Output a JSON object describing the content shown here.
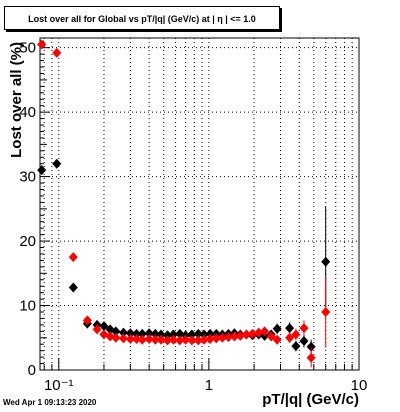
{
  "chart_data": {
    "type": "scatter",
    "title": "Lost over all for Global vs pT/|q| (GeV/c) at |  η | <= 1.0",
    "xlabel": "pT/|q| (GeV/c)",
    "ylabel": "Lost over all (%)",
    "xscale": "log",
    "xlim": [
      0.075,
      10
    ],
    "ylim": [
      0,
      51.5
    ],
    "grid": true,
    "x_tick_labels": [
      "10⁻¹",
      "1",
      "10"
    ],
    "x_tick_values": [
      0.1,
      1,
      10
    ],
    "y_tick_labels": [
      "0",
      "10",
      "20",
      "30",
      "40",
      "50"
    ],
    "y_tick_values": [
      0,
      10,
      20,
      30,
      40,
      50
    ],
    "series": [
      {
        "color": "#000000",
        "marker": "diamond",
        "points": [
          {
            "x": 0.077,
            "y": 31.0,
            "err": 0.5
          },
          {
            "x": 0.097,
            "y": 32.0,
            "err": 0.5
          },
          {
            "x": 0.125,
            "y": 12.8,
            "err": 0.4
          },
          {
            "x": 0.155,
            "y": 7.2,
            "err": 0.3
          },
          {
            "x": 0.18,
            "y": 7.0,
            "err": 0.3
          },
          {
            "x": 0.2,
            "y": 6.8,
            "err": 0.3
          },
          {
            "x": 0.22,
            "y": 6.3,
            "err": 0.3
          },
          {
            "x": 0.24,
            "y": 6.0,
            "err": 0.3
          },
          {
            "x": 0.27,
            "y": 5.8,
            "err": 0.3
          },
          {
            "x": 0.3,
            "y": 5.7,
            "err": 0.3
          },
          {
            "x": 0.33,
            "y": 5.6,
            "err": 0.3
          },
          {
            "x": 0.36,
            "y": 5.6,
            "err": 0.3
          },
          {
            "x": 0.4,
            "y": 5.7,
            "err": 0.3
          },
          {
            "x": 0.44,
            "y": 5.6,
            "err": 0.3
          },
          {
            "x": 0.48,
            "y": 5.5,
            "err": 0.3
          },
          {
            "x": 0.53,
            "y": 5.4,
            "err": 0.3
          },
          {
            "x": 0.58,
            "y": 5.5,
            "err": 0.3
          },
          {
            "x": 0.64,
            "y": 5.6,
            "err": 0.3
          },
          {
            "x": 0.7,
            "y": 5.4,
            "err": 0.3
          },
          {
            "x": 0.77,
            "y": 5.5,
            "err": 0.3
          },
          {
            "x": 0.85,
            "y": 5.6,
            "err": 0.3
          },
          {
            "x": 0.93,
            "y": 5.5,
            "err": 0.3
          },
          {
            "x": 1.02,
            "y": 5.6,
            "err": 0.3
          },
          {
            "x": 1.12,
            "y": 5.6,
            "err": 0.3
          },
          {
            "x": 1.23,
            "y": 5.5,
            "err": 0.3
          },
          {
            "x": 1.35,
            "y": 5.6,
            "err": 0.3
          },
          {
            "x": 1.48,
            "y": 5.7,
            "err": 0.3
          },
          {
            "x": 1.62,
            "y": 5.5,
            "err": 0.3
          },
          {
            "x": 1.78,
            "y": 5.5,
            "err": 0.3
          },
          {
            "x": 1.95,
            "y": 5.4,
            "err": 0.4
          },
          {
            "x": 2.15,
            "y": 5.5,
            "err": 0.4
          },
          {
            "x": 2.35,
            "y": 5.3,
            "err": 0.5
          },
          {
            "x": 2.6,
            "y": 5.5,
            "err": 0.6
          },
          {
            "x": 2.85,
            "y": 6.4,
            "err": 0.8
          },
          {
            "x": 3.45,
            "y": 6.5,
            "err": 0.9
          },
          {
            "x": 3.8,
            "y": 3.7,
            "err": 0.8
          },
          {
            "x": 4.3,
            "y": 4.5,
            "err": 1.0
          },
          {
            "x": 4.8,
            "y": 3.6,
            "err": 1.1
          },
          {
            "x": 6.0,
            "y": 16.8,
            "err": 8.5
          }
        ]
      },
      {
        "color": "#ff0000",
        "marker": "diamond",
        "points": [
          {
            "x": 0.077,
            "y": 50.5,
            "err": 0.5
          },
          {
            "x": 0.097,
            "y": 49.2,
            "err": 0.5
          },
          {
            "x": 0.125,
            "y": 17.5,
            "err": 0.4
          },
          {
            "x": 0.155,
            "y": 7.7,
            "err": 0.3
          },
          {
            "x": 0.18,
            "y": 6.3,
            "err": 0.3
          },
          {
            "x": 0.2,
            "y": 5.5,
            "err": 0.3
          },
          {
            "x": 0.22,
            "y": 5.2,
            "err": 0.3
          },
          {
            "x": 0.24,
            "y": 5.0,
            "err": 0.3
          },
          {
            "x": 0.27,
            "y": 4.9,
            "err": 0.3
          },
          {
            "x": 0.3,
            "y": 4.8,
            "err": 0.3
          },
          {
            "x": 0.33,
            "y": 4.8,
            "err": 0.3
          },
          {
            "x": 0.36,
            "y": 4.7,
            "err": 0.3
          },
          {
            "x": 0.4,
            "y": 4.8,
            "err": 0.3
          },
          {
            "x": 0.44,
            "y": 4.7,
            "err": 0.3
          },
          {
            "x": 0.48,
            "y": 4.7,
            "err": 0.3
          },
          {
            "x": 0.53,
            "y": 4.6,
            "err": 0.3
          },
          {
            "x": 0.58,
            "y": 4.7,
            "err": 0.3
          },
          {
            "x": 0.64,
            "y": 4.6,
            "err": 0.3
          },
          {
            "x": 0.7,
            "y": 4.7,
            "err": 0.3
          },
          {
            "x": 0.77,
            "y": 4.6,
            "err": 0.3
          },
          {
            "x": 0.85,
            "y": 4.6,
            "err": 0.3
          },
          {
            "x": 0.93,
            "y": 4.7,
            "err": 0.3
          },
          {
            "x": 1.02,
            "y": 4.8,
            "err": 0.3
          },
          {
            "x": 1.12,
            "y": 4.9,
            "err": 0.3
          },
          {
            "x": 1.23,
            "y": 5.0,
            "err": 0.3
          },
          {
            "x": 1.35,
            "y": 5.1,
            "err": 0.3
          },
          {
            "x": 1.48,
            "y": 5.2,
            "err": 0.3
          },
          {
            "x": 1.62,
            "y": 5.3,
            "err": 0.3
          },
          {
            "x": 1.78,
            "y": 5.5,
            "err": 0.4
          },
          {
            "x": 1.95,
            "y": 5.6,
            "err": 0.4
          },
          {
            "x": 2.15,
            "y": 5.8,
            "err": 0.5
          },
          {
            "x": 2.35,
            "y": 6.0,
            "err": 0.5
          },
          {
            "x": 2.6,
            "y": 5.2,
            "err": 0.6
          },
          {
            "x": 2.85,
            "y": 4.7,
            "err": 0.7
          },
          {
            "x": 3.45,
            "y": 5.0,
            "err": 0.8
          },
          {
            "x": 3.8,
            "y": 5.5,
            "err": 0.9
          },
          {
            "x": 4.3,
            "y": 6.5,
            "err": 1.2
          },
          {
            "x": 4.8,
            "y": 1.9,
            "err": 1.5
          },
          {
            "x": 6.0,
            "y": 9.0,
            "err": 5.5
          }
        ]
      }
    ]
  },
  "timestamp": "Wed Apr  1 09:13:23 2020"
}
